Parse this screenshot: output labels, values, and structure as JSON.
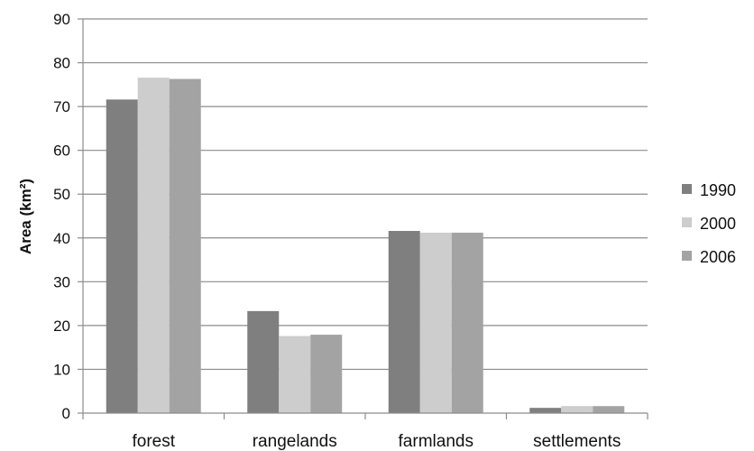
{
  "chart_data": {
    "type": "bar",
    "title": "",
    "xlabel": "",
    "ylabel": "Area (km²)",
    "ylim": [
      0,
      90
    ],
    "yticks": [
      0,
      10,
      20,
      30,
      40,
      50,
      60,
      70,
      80,
      90
    ],
    "categories": [
      "forest",
      "rangelands",
      "farmlands",
      "settlements"
    ],
    "series": [
      {
        "name": "1990",
        "values": [
          71.6,
          23.3,
          41.6,
          1.2
        ],
        "color": "#7f7f7f"
      },
      {
        "name": "2000",
        "values": [
          76.6,
          17.6,
          41.2,
          1.6
        ],
        "color": "#cdcdcd"
      },
      {
        "name": "2006",
        "values": [
          76.3,
          17.9,
          41.2,
          1.6
        ],
        "color": "#a3a3a3"
      }
    ],
    "grid": true,
    "legend_position": "right"
  }
}
